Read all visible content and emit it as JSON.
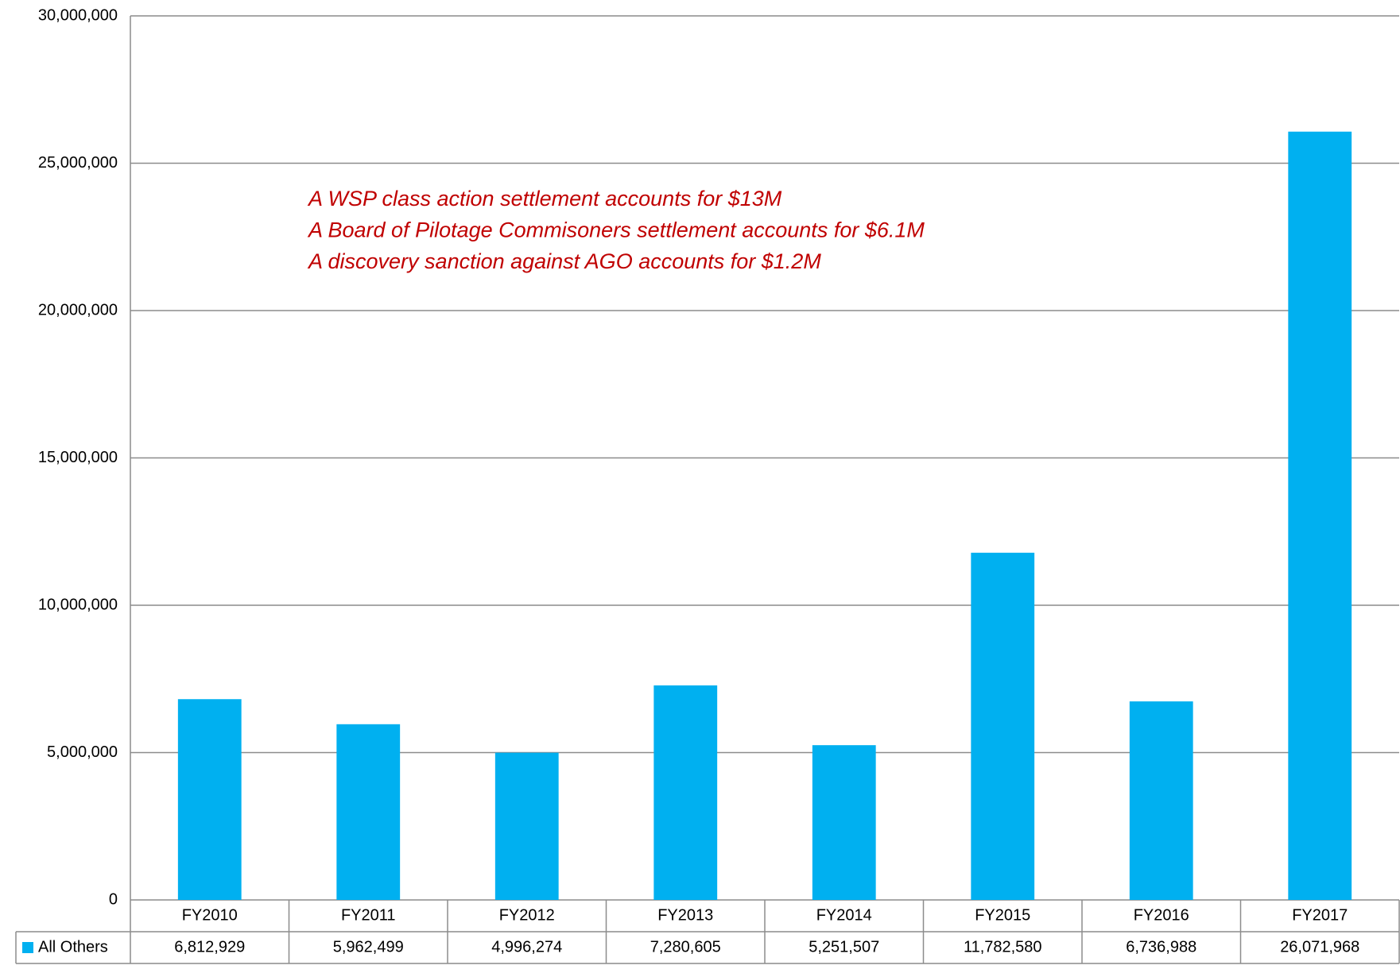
{
  "chart_data": {
    "type": "bar",
    "categories": [
      "FY2010",
      "FY2011",
      "FY2012",
      "FY2013",
      "FY2014",
      "FY2015",
      "FY2016",
      "FY2017"
    ],
    "series": [
      {
        "name": "All Others",
        "color": "#00b0f0",
        "values": [
          6812929,
          5962499,
          4996274,
          7280605,
          5251507,
          11782580,
          6736988,
          26071968
        ],
        "value_labels": [
          "6,812,929",
          "5,962,499",
          "4,996,274",
          "7,280,605",
          "5,251,507",
          "11,782,580",
          "6,736,988",
          "26,071,968"
        ]
      }
    ],
    "ylim": [
      0,
      30000000
    ],
    "yticks": [
      0,
      {
        "value": 5000000,
        "label": "5,000,000"
      },
      {
        "value": 10000000,
        "label": "10,000,000"
      },
      {
        "value": 15000000,
        "label": "15,000,000"
      },
      {
        "value": 20000000,
        "label": "20,000,000"
      },
      {
        "value": 25000000,
        "label": "25,000,000"
      },
      {
        "value": 30000000,
        "label": "30,000,000"
      }
    ],
    "grid": true,
    "annotations": [
      "A WSP class action settlement accounts for $13M",
      "A Board of Pilotage Commisoners settlement accounts for $6.1M",
      "A discovery sanction against AGO accounts for $1.2M"
    ],
    "annotation_color": "#c00000"
  }
}
